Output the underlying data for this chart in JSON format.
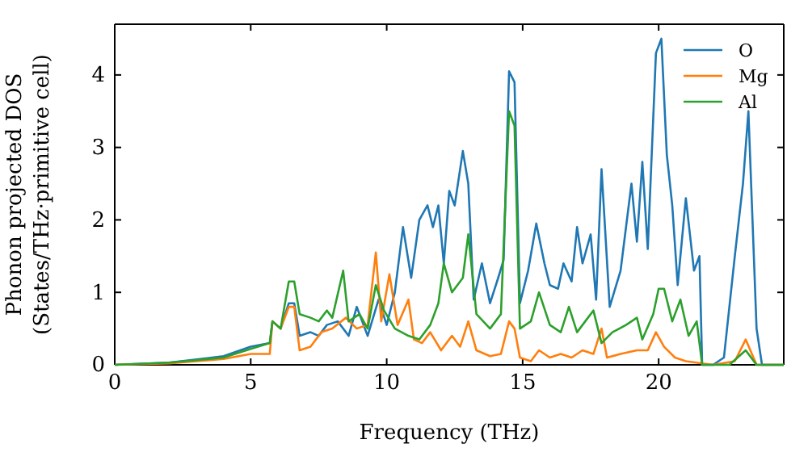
{
  "chart_data": {
    "type": "line",
    "xlabel": "Frequency (THz)",
    "ylabel": "Phonon projected DOS\n(States/THz·primitive cell)",
    "xlim": [
      0,
      24.6
    ],
    "ylim": [
      0,
      4.7
    ],
    "xticks": [
      0,
      5,
      10,
      15,
      20
    ],
    "yticks": [
      0,
      1,
      2,
      3,
      4
    ],
    "legend": "top right",
    "grid": false,
    "series": [
      {
        "name": "O",
        "color": "#1f77b4",
        "x": [
          0,
          2,
          4,
          5,
          5.7,
          5.8,
          6.1,
          6.4,
          6.6,
          6.8,
          7.2,
          7.5,
          7.8,
          8.2,
          8.6,
          8.9,
          9.3,
          9.7,
          10,
          10.3,
          10.6,
          10.9,
          11.2,
          11.5,
          11.7,
          11.9,
          12.1,
          12.3,
          12.5,
          12.8,
          13,
          13.2,
          13.5,
          13.8,
          14.1,
          14.3,
          14.5,
          14.7,
          14.9,
          15.2,
          15.5,
          15.8,
          16,
          16.3,
          16.5,
          16.8,
          17,
          17.2,
          17.5,
          17.7,
          17.9,
          18.2,
          18.6,
          19,
          19.2,
          19.4,
          19.6,
          19.9,
          20.1,
          20.3,
          20.5,
          20.7,
          21,
          21.3,
          21.5,
          21.6,
          22,
          22.4,
          22.8,
          23.1,
          23.3,
          23.6,
          23.8,
          24.6
        ],
        "values": [
          0,
          0.03,
          0.12,
          0.25,
          0.3,
          0.6,
          0.5,
          0.85,
          0.85,
          0.4,
          0.45,
          0.4,
          0.55,
          0.6,
          0.4,
          0.8,
          0.4,
          0.9,
          0.55,
          1.0,
          1.9,
          1.2,
          2.0,
          2.2,
          1.9,
          2.2,
          1.4,
          2.4,
          2.2,
          2.95,
          2.5,
          0.9,
          1.4,
          0.85,
          1.2,
          1.45,
          4.05,
          3.9,
          0.85,
          1.3,
          1.95,
          1.4,
          1.1,
          1.05,
          1.4,
          1.15,
          1.9,
          1.4,
          1.8,
          0.9,
          2.7,
          0.8,
          1.3,
          2.5,
          1.7,
          2.8,
          1.6,
          4.3,
          4.5,
          2.9,
          2.2,
          1.1,
          2.3,
          1.3,
          1.5,
          0,
          0,
          0.1,
          1.5,
          2.5,
          3.5,
          0.5,
          0,
          0
        ]
      },
      {
        "name": "Mg",
        "color": "#ff7f0e",
        "x": [
          0,
          2,
          4,
          5,
          5.7,
          5.8,
          6.1,
          6.4,
          6.6,
          6.8,
          7.2,
          7.6,
          8,
          8.5,
          8.9,
          9.3,
          9.6,
          9.8,
          10.1,
          10.4,
          10.8,
          11,
          11.3,
          11.6,
          12,
          12.4,
          12.7,
          13,
          13.3,
          13.8,
          14.2,
          14.5,
          14.7,
          14.9,
          15.3,
          15.6,
          16,
          16.4,
          16.8,
          17.2,
          17.6,
          17.9,
          18.1,
          18.6,
          19.2,
          19.6,
          19.9,
          20.2,
          20.6,
          21,
          21.6,
          22,
          22.8,
          23.2,
          23.6,
          24.6
        ],
        "values": [
          0,
          0.02,
          0.08,
          0.15,
          0.15,
          0.6,
          0.5,
          0.8,
          0.8,
          0.2,
          0.25,
          0.45,
          0.5,
          0.65,
          0.5,
          0.55,
          1.55,
          0.6,
          1.25,
          0.55,
          0.9,
          0.35,
          0.3,
          0.45,
          0.2,
          0.4,
          0.25,
          0.6,
          0.2,
          0.12,
          0.15,
          0.6,
          0.5,
          0.1,
          0.05,
          0.2,
          0.1,
          0.15,
          0.1,
          0.2,
          0.15,
          0.5,
          0.1,
          0.15,
          0.2,
          0.2,
          0.45,
          0.25,
          0.1,
          0.05,
          0.02,
          0,
          0.05,
          0.35,
          0,
          0
        ]
      },
      {
        "name": "Al",
        "color": "#2ca02c",
        "x": [
          0,
          2,
          4,
          5,
          5.7,
          5.8,
          6.1,
          6.4,
          6.6,
          6.8,
          7.2,
          7.5,
          7.8,
          8,
          8.4,
          8.6,
          9,
          9.3,
          9.6,
          9.9,
          10.3,
          10.8,
          11.2,
          11.6,
          11.9,
          12.1,
          12.4,
          12.8,
          13,
          13.3,
          13.8,
          14.2,
          14.5,
          14.7,
          14.9,
          15.3,
          15.6,
          16,
          16.4,
          16.7,
          17,
          17.3,
          17.6,
          17.9,
          18.3,
          18.8,
          19.2,
          19.4,
          19.8,
          20,
          20.2,
          20.5,
          20.8,
          21.1,
          21.4,
          21.6,
          22.6,
          23.2,
          23.6,
          24.6
        ],
        "values": [
          0,
          0.03,
          0.1,
          0.22,
          0.3,
          0.6,
          0.5,
          1.15,
          1.15,
          0.7,
          0.65,
          0.6,
          0.75,
          0.65,
          1.3,
          0.6,
          0.7,
          0.5,
          1.1,
          0.75,
          0.5,
          0.4,
          0.35,
          0.55,
          0.85,
          1.4,
          1.0,
          1.2,
          1.8,
          0.7,
          0.5,
          0.7,
          3.5,
          3.3,
          0.5,
          0.6,
          1.0,
          0.55,
          0.45,
          0.8,
          0.45,
          0.6,
          0.75,
          0.3,
          0.45,
          0.55,
          0.65,
          0.35,
          0.7,
          1.05,
          1.05,
          0.6,
          0.9,
          0.4,
          0.6,
          0,
          0,
          0.2,
          0,
          0
        ]
      }
    ]
  }
}
